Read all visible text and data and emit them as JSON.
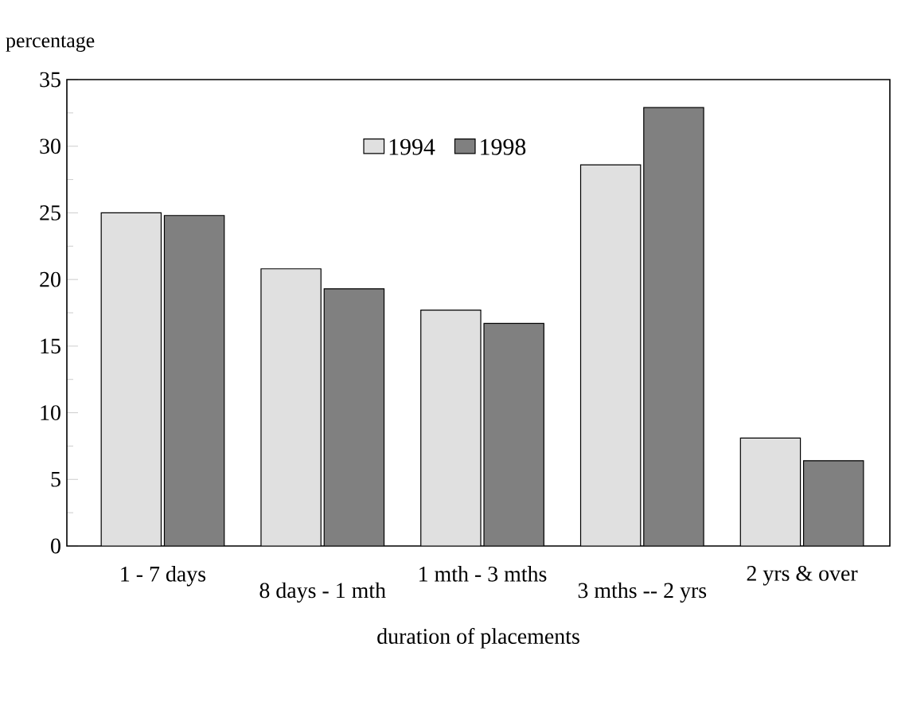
{
  "chart_data": {
    "type": "bar",
    "ylabel": "percentage",
    "xlabel": "duration of placements",
    "categories": [
      "1 - 7 days",
      "8 days - 1 mth",
      "1 mth - 3 mths",
      "3 mths -- 2 yrs",
      "2 yrs & over"
    ],
    "series": [
      {
        "name": "1994",
        "color": "#e0e0e0",
        "values": [
          25.0,
          20.8,
          17.7,
          28.6,
          8.1
        ]
      },
      {
        "name": "1998",
        "color": "#808080",
        "values": [
          24.8,
          19.3,
          16.7,
          32.9,
          6.4
        ]
      }
    ],
    "ylim": [
      0,
      35
    ],
    "yticks": [
      0,
      5,
      10,
      15,
      20,
      25,
      30,
      35
    ],
    "grid": false,
    "legend": "top"
  }
}
